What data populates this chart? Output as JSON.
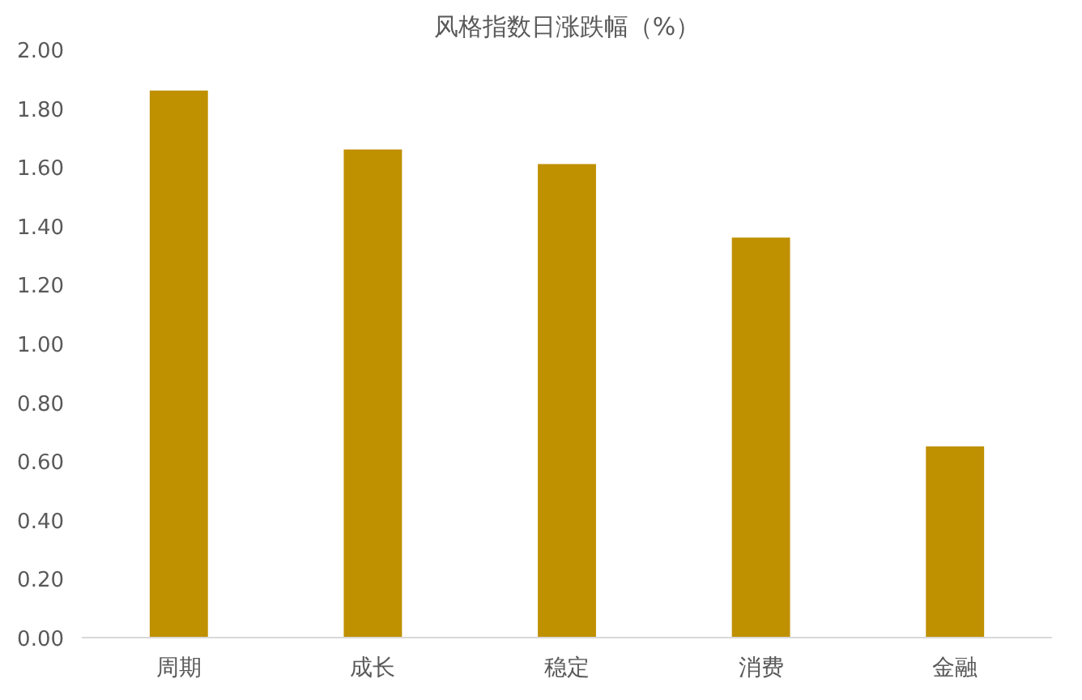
{
  "chart_data": {
    "type": "bar",
    "title": "风格指数日涨跌幅（%）",
    "categories": [
      "周期",
      "成长",
      "稳定",
      "消费",
      "金融"
    ],
    "values": [
      1.86,
      1.66,
      1.61,
      1.36,
      0.65
    ],
    "color": "#bf9000",
    "ylim": [
      0,
      2
    ],
    "yticks": [
      {
        "value": 0,
        "label": "0.00"
      },
      {
        "value": 0.2,
        "label": "0.20"
      },
      {
        "value": 0.4,
        "label": "0.40"
      },
      {
        "value": 0.6,
        "label": "0.60"
      },
      {
        "value": 0.8,
        "label": "0.80"
      },
      {
        "value": 1,
        "label": "1.00"
      },
      {
        "value": 1.2,
        "label": "1.20"
      },
      {
        "value": 1.4,
        "label": "1.40"
      },
      {
        "value": 1.6,
        "label": "1.60"
      },
      {
        "value": 1.8,
        "label": "1.80"
      },
      {
        "value": 2,
        "label": "2.00"
      }
    ],
    "grid": false
  }
}
